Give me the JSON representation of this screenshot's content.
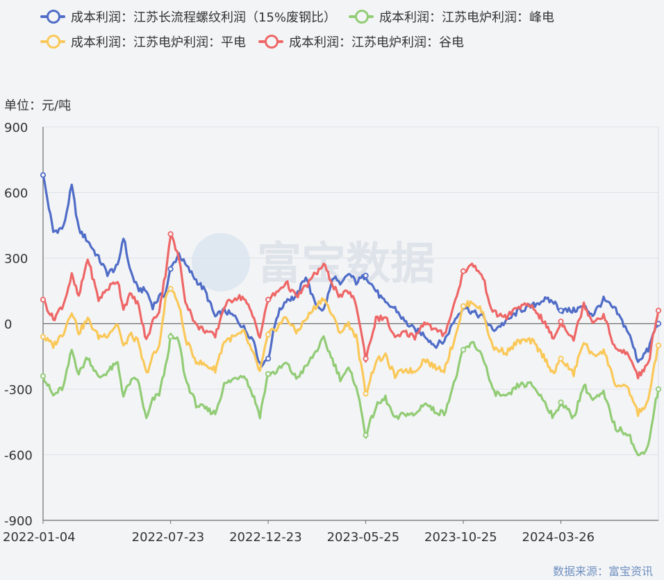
{
  "unit_label": "单位：元/吨",
  "source_label": "数据来源：富宝资讯",
  "watermark": "富宝数据",
  "chart_data": {
    "type": "line",
    "title": "",
    "xlabel": "",
    "ylabel": "单位：元/吨",
    "ylim": [
      -900,
      900
    ],
    "yticks": [
      -900,
      -600,
      -300,
      0,
      300,
      600,
      900
    ],
    "x_tick_labels": [
      "2022-01-04",
      "2022-07-23",
      "2022-12-23",
      "2023-05-25",
      "2023-10-25",
      "2024-03-26"
    ],
    "x_start": "2022-01-04",
    "x_end": "2024-08-26",
    "grid": true,
    "legend_position": "top",
    "series": [
      {
        "name": "成本利润：江苏长流程螺纹利润（15%废钢比）",
        "color": "#4f6cc7",
        "points": [
          [
            "2022-01-04",
            680
          ],
          [
            "2022-01-20",
            420
          ],
          [
            "2022-02-05",
            440
          ],
          [
            "2022-02-18",
            630
          ],
          [
            "2022-03-01",
            430
          ],
          [
            "2022-03-15",
            380
          ],
          [
            "2022-04-01",
            300
          ],
          [
            "2022-04-15",
            230
          ],
          [
            "2022-05-01",
            260
          ],
          [
            "2022-05-10",
            400
          ],
          [
            "2022-05-20",
            250
          ],
          [
            "2022-06-01",
            160
          ],
          [
            "2022-06-15",
            150
          ],
          [
            "2022-06-25",
            80
          ],
          [
            "2022-07-05",
            120
          ],
          [
            "2022-07-15",
            140
          ],
          [
            "2022-07-23",
            250
          ],
          [
            "2022-08-05",
            320
          ],
          [
            "2022-08-15",
            270
          ],
          [
            "2022-09-01",
            200
          ],
          [
            "2022-09-15",
            150
          ],
          [
            "2022-10-01",
            30
          ],
          [
            "2022-10-15",
            60
          ],
          [
            "2022-11-01",
            30
          ],
          [
            "2022-11-15",
            -20
          ],
          [
            "2022-12-01",
            -80
          ],
          [
            "2022-12-10",
            -190
          ],
          [
            "2022-12-23",
            -160
          ],
          [
            "2023-01-05",
            30
          ],
          [
            "2023-01-20",
            110
          ],
          [
            "2023-02-05",
            120
          ],
          [
            "2023-02-20",
            220
          ],
          [
            "2023-03-05",
            100
          ],
          [
            "2023-03-20",
            60
          ],
          [
            "2023-04-05",
            220
          ],
          [
            "2023-04-15",
            170
          ],
          [
            "2023-04-28",
            230
          ],
          [
            "2023-05-10",
            190
          ],
          [
            "2023-05-25",
            220
          ],
          [
            "2023-06-10",
            150
          ],
          [
            "2023-06-25",
            90
          ],
          [
            "2023-07-10",
            70
          ],
          [
            "2023-07-25",
            10
          ],
          [
            "2023-08-10",
            -30
          ],
          [
            "2023-08-25",
            -50
          ],
          [
            "2023-09-10",
            -100
          ],
          [
            "2023-09-25",
            -80
          ],
          [
            "2023-10-10",
            10
          ],
          [
            "2023-10-25",
            80
          ],
          [
            "2023-11-10",
            50
          ],
          [
            "2023-11-25",
            30
          ],
          [
            "2023-12-10",
            -30
          ],
          [
            "2024-01-01",
            10
          ],
          [
            "2024-01-20",
            60
          ],
          [
            "2024-02-10",
            80
          ],
          [
            "2024-02-28",
            110
          ],
          [
            "2024-03-15",
            100
          ],
          [
            "2024-03-26",
            60
          ],
          [
            "2024-04-15",
            60
          ],
          [
            "2024-05-01",
            80
          ],
          [
            "2024-05-15",
            40
          ],
          [
            "2024-06-01",
            110
          ],
          [
            "2024-06-20",
            60
          ],
          [
            "2024-07-10",
            -40
          ],
          [
            "2024-07-25",
            -170
          ],
          [
            "2024-08-10",
            -120
          ],
          [
            "2024-08-20",
            -30
          ],
          [
            "2024-08-26",
            0
          ]
        ]
      },
      {
        "name": "成本利润：江苏电炉利润：峰电",
        "color": "#91cc75",
        "points": [
          [
            "2022-01-04",
            -240
          ],
          [
            "2022-01-20",
            -330
          ],
          [
            "2022-02-05",
            -290
          ],
          [
            "2022-02-18",
            -120
          ],
          [
            "2022-03-01",
            -230
          ],
          [
            "2022-03-15",
            -150
          ],
          [
            "2022-04-01",
            -250
          ],
          [
            "2022-04-15",
            -220
          ],
          [
            "2022-05-01",
            -180
          ],
          [
            "2022-05-10",
            -330
          ],
          [
            "2022-05-20",
            -270
          ],
          [
            "2022-06-01",
            -250
          ],
          [
            "2022-06-15",
            -440
          ],
          [
            "2022-06-25",
            -350
          ],
          [
            "2022-07-05",
            -320
          ],
          [
            "2022-07-15",
            -200
          ],
          [
            "2022-07-23",
            -60
          ],
          [
            "2022-08-05",
            -80
          ],
          [
            "2022-08-15",
            -250
          ],
          [
            "2022-09-01",
            -370
          ],
          [
            "2022-09-15",
            -390
          ],
          [
            "2022-10-01",
            -410
          ],
          [
            "2022-10-15",
            -280
          ],
          [
            "2022-11-01",
            -250
          ],
          [
            "2022-11-15",
            -230
          ],
          [
            "2022-12-01",
            -340
          ],
          [
            "2022-12-10",
            -420
          ],
          [
            "2022-12-23",
            -230
          ],
          [
            "2023-01-05",
            -220
          ],
          [
            "2023-01-20",
            -180
          ],
          [
            "2023-02-05",
            -250
          ],
          [
            "2023-02-20",
            -200
          ],
          [
            "2023-03-05",
            -140
          ],
          [
            "2023-03-20",
            -70
          ],
          [
            "2023-04-05",
            -180
          ],
          [
            "2023-04-15",
            -250
          ],
          [
            "2023-04-28",
            -210
          ],
          [
            "2023-05-10",
            -280
          ],
          [
            "2023-05-25",
            -510
          ],
          [
            "2023-06-10",
            -380
          ],
          [
            "2023-06-25",
            -340
          ],
          [
            "2023-07-10",
            -440
          ],
          [
            "2023-07-25",
            -410
          ],
          [
            "2023-08-10",
            -420
          ],
          [
            "2023-08-25",
            -360
          ],
          [
            "2023-09-10",
            -400
          ],
          [
            "2023-09-25",
            -410
          ],
          [
            "2023-10-10",
            -280
          ],
          [
            "2023-10-25",
            -120
          ],
          [
            "2023-11-10",
            -90
          ],
          [
            "2023-11-25",
            -150
          ],
          [
            "2023-12-10",
            -310
          ],
          [
            "2024-01-01",
            -340
          ],
          [
            "2024-01-20",
            -280
          ],
          [
            "2024-02-10",
            -280
          ],
          [
            "2024-02-28",
            -350
          ],
          [
            "2024-03-15",
            -430
          ],
          [
            "2024-03-26",
            -360
          ],
          [
            "2024-04-15",
            -430
          ],
          [
            "2024-05-01",
            -280
          ],
          [
            "2024-05-15",
            -350
          ],
          [
            "2024-06-01",
            -320
          ],
          [
            "2024-06-20",
            -480
          ],
          [
            "2024-07-10",
            -500
          ],
          [
            "2024-07-25",
            -610
          ],
          [
            "2024-08-10",
            -560
          ],
          [
            "2024-08-20",
            -380
          ],
          [
            "2024-08-26",
            -300
          ]
        ]
      },
      {
        "name": "成本利润：江苏电炉利润：平电",
        "color": "#fac858",
        "points": [
          [
            "2022-01-04",
            -60
          ],
          [
            "2022-01-20",
            -100
          ],
          [
            "2022-02-05",
            -40
          ],
          [
            "2022-02-18",
            60
          ],
          [
            "2022-03-01",
            -40
          ],
          [
            "2022-03-15",
            20
          ],
          [
            "2022-04-01",
            -60
          ],
          [
            "2022-04-15",
            -50
          ],
          [
            "2022-05-01",
            0
          ],
          [
            "2022-05-10",
            -110
          ],
          [
            "2022-05-20",
            -50
          ],
          [
            "2022-06-01",
            -80
          ],
          [
            "2022-06-15",
            -230
          ],
          [
            "2022-06-25",
            -150
          ],
          [
            "2022-07-05",
            -110
          ],
          [
            "2022-07-15",
            120
          ],
          [
            "2022-07-23",
            160
          ],
          [
            "2022-08-05",
            90
          ],
          [
            "2022-08-15",
            -70
          ],
          [
            "2022-09-01",
            -170
          ],
          [
            "2022-09-15",
            -190
          ],
          [
            "2022-10-01",
            -210
          ],
          [
            "2022-10-15",
            -80
          ],
          [
            "2022-11-01",
            -60
          ],
          [
            "2022-11-15",
            -40
          ],
          [
            "2022-12-01",
            -150
          ],
          [
            "2022-12-10",
            -220
          ],
          [
            "2022-12-23",
            -50
          ],
          [
            "2023-01-05",
            -20
          ],
          [
            "2023-01-20",
            30
          ],
          [
            "2023-02-05",
            -40
          ],
          [
            "2023-02-20",
            20
          ],
          [
            "2023-03-05",
            70
          ],
          [
            "2023-03-20",
            120
          ],
          [
            "2023-04-05",
            20
          ],
          [
            "2023-04-15",
            -40
          ],
          [
            "2023-04-28",
            0
          ],
          [
            "2023-05-10",
            -60
          ],
          [
            "2023-05-25",
            -320
          ],
          [
            "2023-06-10",
            -170
          ],
          [
            "2023-06-25",
            -150
          ],
          [
            "2023-07-10",
            -240
          ],
          [
            "2023-07-25",
            -210
          ],
          [
            "2023-08-10",
            -220
          ],
          [
            "2023-08-25",
            -160
          ],
          [
            "2023-09-10",
            -200
          ],
          [
            "2023-09-25",
            -210
          ],
          [
            "2023-10-10",
            -80
          ],
          [
            "2023-10-25",
            80
          ],
          [
            "2023-11-10",
            100
          ],
          [
            "2023-11-25",
            50
          ],
          [
            "2023-12-10",
            -110
          ],
          [
            "2024-01-01",
            -130
          ],
          [
            "2024-01-20",
            -80
          ],
          [
            "2024-02-10",
            -80
          ],
          [
            "2024-02-28",
            -150
          ],
          [
            "2024-03-15",
            -230
          ],
          [
            "2024-03-26",
            -160
          ],
          [
            "2024-04-15",
            -230
          ],
          [
            "2024-05-01",
            -80
          ],
          [
            "2024-05-15",
            -150
          ],
          [
            "2024-06-01",
            -120
          ],
          [
            "2024-06-20",
            -280
          ],
          [
            "2024-07-10",
            -300
          ],
          [
            "2024-07-25",
            -410
          ],
          [
            "2024-08-10",
            -360
          ],
          [
            "2024-08-20",
            -180
          ],
          [
            "2024-08-26",
            -100
          ]
        ]
      },
      {
        "name": "成本利润：江苏电炉利润：谷电",
        "color": "#ee6666",
        "points": [
          [
            "2022-01-04",
            110
          ],
          [
            "2022-01-20",
            20
          ],
          [
            "2022-02-05",
            90
          ],
          [
            "2022-02-18",
            220
          ],
          [
            "2022-03-01",
            120
          ],
          [
            "2022-03-15",
            300
          ],
          [
            "2022-04-01",
            110
          ],
          [
            "2022-04-15",
            160
          ],
          [
            "2022-05-01",
            200
          ],
          [
            "2022-05-10",
            70
          ],
          [
            "2022-05-20",
            130
          ],
          [
            "2022-06-01",
            100
          ],
          [
            "2022-06-15",
            -80
          ],
          [
            "2022-06-25",
            10
          ],
          [
            "2022-07-05",
            60
          ],
          [
            "2022-07-15",
            230
          ],
          [
            "2022-07-23",
            410
          ],
          [
            "2022-08-05",
            300
          ],
          [
            "2022-08-15",
            110
          ],
          [
            "2022-09-01",
            -10
          ],
          [
            "2022-09-15",
            -30
          ],
          [
            "2022-10-01",
            -60
          ],
          [
            "2022-10-15",
            80
          ],
          [
            "2022-11-01",
            120
          ],
          [
            "2022-11-15",
            120
          ],
          [
            "2022-12-01",
            20
          ],
          [
            "2022-12-10",
            -60
          ],
          [
            "2022-12-23",
            110
          ],
          [
            "2023-01-05",
            140
          ],
          [
            "2023-01-20",
            190
          ],
          [
            "2023-02-05",
            120
          ],
          [
            "2023-02-20",
            170
          ],
          [
            "2023-03-05",
            220
          ],
          [
            "2023-03-20",
            270
          ],
          [
            "2023-04-05",
            170
          ],
          [
            "2023-04-15",
            120
          ],
          [
            "2023-04-28",
            150
          ],
          [
            "2023-05-10",
            90
          ],
          [
            "2023-05-25",
            -160
          ],
          [
            "2023-06-10",
            20
          ],
          [
            "2023-06-25",
            30
          ],
          [
            "2023-07-10",
            -70
          ],
          [
            "2023-07-25",
            -40
          ],
          [
            "2023-08-10",
            -60
          ],
          [
            "2023-08-25",
            10
          ],
          [
            "2023-09-10",
            -30
          ],
          [
            "2023-09-25",
            -50
          ],
          [
            "2023-10-10",
            80
          ],
          [
            "2023-10-25",
            240
          ],
          [
            "2023-11-10",
            270
          ],
          [
            "2023-11-25",
            210
          ],
          [
            "2023-12-10",
            50
          ],
          [
            "2024-01-01",
            30
          ],
          [
            "2024-01-20",
            80
          ],
          [
            "2024-02-10",
            80
          ],
          [
            "2024-02-28",
            10
          ],
          [
            "2024-03-15",
            -70
          ],
          [
            "2024-03-26",
            10
          ],
          [
            "2024-04-15",
            -70
          ],
          [
            "2024-05-01",
            90
          ],
          [
            "2024-05-15",
            10
          ],
          [
            "2024-06-01",
            40
          ],
          [
            "2024-06-20",
            -120
          ],
          [
            "2024-07-10",
            -140
          ],
          [
            "2024-07-25",
            -240
          ],
          [
            "2024-08-10",
            -190
          ],
          [
            "2024-08-20",
            -20
          ],
          [
            "2024-08-26",
            60
          ]
        ]
      }
    ]
  }
}
